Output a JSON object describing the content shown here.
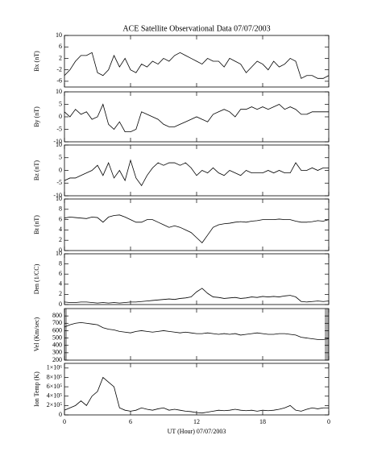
{
  "title": "ACE Satellite Observational Data   07/07/2003",
  "xlabel": "UT (Hour)   07/07/2003",
  "xlim": [
    0,
    24
  ],
  "xticks": [
    0,
    6,
    12,
    18,
    {
      "value": 24,
      "label": "0"
    }
  ],
  "x": [
    0,
    0.5,
    1,
    1.5,
    2,
    2.5,
    3,
    3.5,
    4,
    4.5,
    5,
    5.5,
    6,
    6.5,
    7,
    7.5,
    8,
    8.5,
    9,
    9.5,
    10,
    10.5,
    11,
    11.5,
    12,
    12.5,
    13,
    13.5,
    14,
    14.5,
    15,
    15.5,
    16,
    16.5,
    17,
    17.5,
    18,
    18.5,
    19,
    19.5,
    20,
    20.5,
    21,
    21.5,
    22,
    22.5,
    23,
    23.5,
    24
  ],
  "chart_data": [
    {
      "type": "line",
      "ylabel": "Bx (nT)",
      "color": "#000000",
      "ylim": [
        -8,
        10
      ],
      "yticks": [
        -6,
        -2,
        2,
        6,
        10
      ],
      "values": [
        -4,
        -2,
        1,
        3,
        3,
        4,
        -3,
        -4,
        -2,
        3,
        -1,
        2,
        -2,
        -3,
        0,
        -1,
        1,
        0,
        2,
        1,
        3,
        4,
        3,
        2,
        1,
        0,
        2,
        1,
        1,
        -1,
        2,
        1,
        0,
        -3,
        -1,
        1,
        0,
        -2,
        1,
        -1,
        0,
        2,
        1,
        -5,
        -4,
        -4,
        -5,
        -5,
        -4
      ]
    },
    {
      "type": "line",
      "ylabel": "By (nT)",
      "color": "#000000",
      "ylim": [
        -10,
        10
      ],
      "yticks": [
        -10,
        -5,
        0,
        5,
        10
      ],
      "values": [
        2,
        0,
        3,
        1,
        2,
        -1,
        0,
        5,
        -3,
        -5,
        -2,
        -6,
        -6,
        -5,
        2,
        1,
        0,
        -1,
        -3,
        -4,
        -4,
        -3,
        -2,
        -1,
        0,
        -1,
        -2,
        1,
        2,
        3,
        2,
        0,
        3,
        3,
        4,
        3,
        4,
        3,
        4,
        5,
        3,
        4,
        3,
        1,
        1,
        2,
        2,
        2,
        2
      ]
    },
    {
      "type": "line",
      "ylabel": "Bz (nT)",
      "color": "#000000",
      "ylim": [
        -10,
        10
      ],
      "yticks": [
        -10,
        -5,
        0,
        5,
        10
      ],
      "values": [
        -4,
        -3,
        -3,
        -2,
        -1,
        0,
        2,
        -2,
        3,
        -3,
        0,
        -4,
        4,
        -3,
        -6,
        -2,
        1,
        3,
        2,
        3,
        3,
        2,
        3,
        1,
        -2,
        0,
        -1,
        1,
        -1,
        -2,
        0,
        -1,
        -2,
        0,
        -1,
        -1,
        -1,
        0,
        -1,
        0,
        -1,
        -1,
        3,
        0,
        0,
        1,
        0,
        1,
        1
      ]
    },
    {
      "type": "line",
      "ylabel": "Bt (nT)",
      "color": "#000000",
      "ylim": [
        0,
        10
      ],
      "yticks": [
        0,
        2,
        4,
        6,
        8,
        10
      ],
      "values": [
        6.3,
        6.5,
        6.4,
        6.3,
        6.2,
        6.5,
        6.4,
        5.5,
        6.5,
        6.8,
        6.9,
        6.5,
        6,
        5.5,
        5.5,
        6,
        6,
        5.5,
        5,
        4.5,
        4.8,
        4.5,
        4,
        3.5,
        2.5,
        1.5,
        3,
        4.5,
        5,
        5.2,
        5.3,
        5.5,
        5.6,
        5.5,
        5.7,
        5.8,
        6,
        6,
        6,
        6.1,
        6,
        6,
        5.7,
        5.5,
        5.5,
        5.6,
        5.8,
        5.7,
        6
      ]
    },
    {
      "type": "line",
      "ylabel": "Den (1/CC)",
      "color": "#000000",
      "ylim": [
        0,
        10
      ],
      "yticks": [
        0,
        2,
        4,
        6,
        8,
        10
      ],
      "values": [
        0.5,
        0.4,
        0.4,
        0.5,
        0.5,
        0.4,
        0.3,
        0.4,
        0.3,
        0.4,
        0.3,
        0.4,
        0.5,
        0.5,
        0.6,
        0.7,
        0.8,
        0.9,
        1,
        1.1,
        1,
        1.2,
        1.3,
        1.5,
        2.5,
        3.2,
        2.2,
        1.5,
        1.4,
        1.2,
        1.3,
        1.4,
        1.2,
        1.3,
        1.5,
        1.4,
        1.6,
        1.5,
        1.6,
        1.5,
        1.7,
        1.8,
        1.5,
        0.6,
        0.5,
        0.6,
        0.7,
        0.6,
        0.7
      ]
    },
    {
      "type": "line",
      "ylabel": "Vel (Km/sec)",
      "color": "#000000",
      "ylim": [
        200,
        900
      ],
      "yticks": [
        200,
        300,
        400,
        500,
        600,
        700,
        800
      ],
      "values": [
        650,
        680,
        700,
        710,
        700,
        690,
        680,
        640,
        620,
        610,
        590,
        580,
        570,
        590,
        600,
        590,
        580,
        590,
        600,
        590,
        580,
        570,
        580,
        570,
        560,
        560,
        570,
        560,
        550,
        560,
        550,
        560,
        540,
        550,
        560,
        570,
        560,
        550,
        550,
        560,
        560,
        550,
        540,
        510,
        500,
        490,
        480,
        480,
        490
      ]
    },
    {
      "type": "line",
      "ylabel": "Ion Temp (K)",
      "color": "#000000",
      "ylim": [
        0,
        1100000
      ],
      "yticks": [
        0,
        {
          "value": 200000,
          "label": "2×10⁵"
        },
        {
          "value": 400000,
          "label": "4×10⁵"
        },
        {
          "value": 600000,
          "label": "6×10⁵"
        },
        {
          "value": 800000,
          "label": "8×10⁵"
        },
        {
          "value": 1000000,
          "label": "1×10⁶"
        }
      ],
      "values": [
        100000,
        150000,
        200000,
        300000,
        200000,
        400000,
        500000,
        800000,
        700000,
        600000,
        150000,
        100000,
        80000,
        100000,
        150000,
        120000,
        100000,
        130000,
        150000,
        100000,
        120000,
        100000,
        80000,
        70000,
        50000,
        40000,
        60000,
        80000,
        100000,
        90000,
        100000,
        120000,
        100000,
        90000,
        100000,
        80000,
        100000,
        90000,
        100000,
        120000,
        150000,
        200000,
        100000,
        80000,
        120000,
        150000,
        130000,
        150000,
        150000
      ]
    }
  ]
}
